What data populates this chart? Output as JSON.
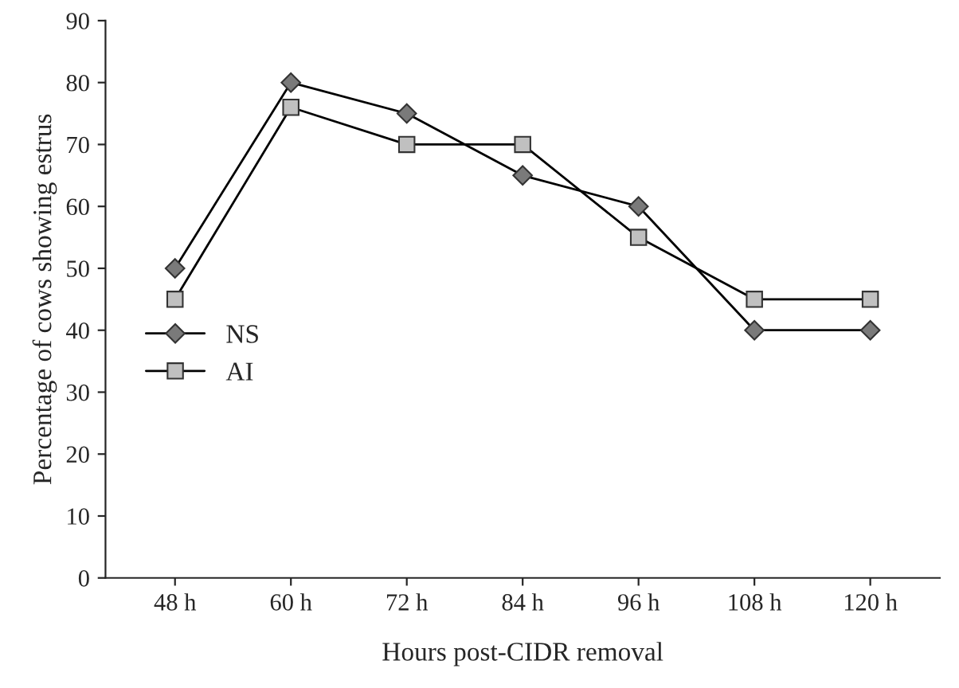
{
  "chart_data": {
    "type": "line",
    "xlabel": "Hours post-CIDR removal",
    "ylabel": "Percentage of cows showing estrus",
    "categories": [
      "48 h",
      "60 h",
      "72 h",
      "84 h",
      "96 h",
      "108 h",
      "120 h"
    ],
    "series": [
      {
        "name": "NS",
        "color": "#7a7a7a",
        "marker": "diamond",
        "values": [
          50,
          80,
          75,
          65,
          60,
          40,
          40
        ]
      },
      {
        "name": "AI",
        "color": "#c0c0c0",
        "marker": "square",
        "values": [
          45,
          76,
          70,
          70,
          55,
          45,
          45
        ]
      }
    ],
    "ylim": [
      0,
      90
    ],
    "yticks": [
      0,
      10,
      20,
      30,
      40,
      50,
      60,
      70,
      80,
      90
    ],
    "grid": false,
    "legend": "center left",
    "line_style": "solid"
  }
}
